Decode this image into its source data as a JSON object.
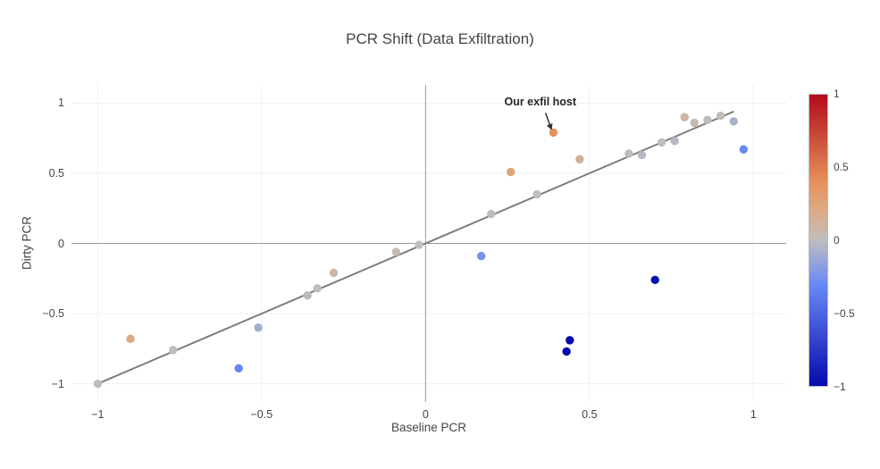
{
  "chart_data": {
    "type": "scatter",
    "title": "PCR Shift (Data Exfiltration)",
    "xlabel": "Baseline PCR",
    "ylabel": "Dirty PCR",
    "xlim": [
      -1.08,
      1.1
    ],
    "ylim": [
      -1.13,
      1.13
    ],
    "grid": true,
    "legend": "none",
    "x_tick_values": [
      -1,
      -0.5,
      0,
      0.5,
      1
    ],
    "x_tick_labels": [
      "−1",
      "−0.5",
      "0",
      "0.5",
      "1"
    ],
    "y_tick_values": [
      -1,
      -0.5,
      0,
      0.5,
      1
    ],
    "y_tick_labels": [
      "−1",
      "−0.5",
      "0",
      "0.5",
      "1"
    ],
    "zero_line_color": "#999999",
    "grid_color": "#efefef",
    "identity_line": {
      "from": [
        -1,
        -1
      ],
      "to": [
        0.94,
        0.94
      ],
      "color": "#7d7d7d",
      "width": 2
    },
    "color_by": "shift = dirty − baseline",
    "points": [
      {
        "x": -1.0,
        "y": -1.0,
        "shift": 0.0
      },
      {
        "x": -0.9,
        "y": -0.68,
        "shift": 0.22
      },
      {
        "x": -0.77,
        "y": -0.76,
        "shift": 0.01
      },
      {
        "x": -0.57,
        "y": -0.89,
        "shift": -0.32
      },
      {
        "x": -0.51,
        "y": -0.6,
        "shift": -0.09
      },
      {
        "x": -0.36,
        "y": -0.37,
        "shift": -0.01
      },
      {
        "x": -0.33,
        "y": -0.32,
        "shift": 0.01
      },
      {
        "x": -0.28,
        "y": -0.21,
        "shift": 0.07
      },
      {
        "x": -0.09,
        "y": -0.06,
        "shift": 0.03
      },
      {
        "x": -0.02,
        "y": -0.01,
        "shift": 0.01
      },
      {
        "x": 0.17,
        "y": -0.09,
        "shift": -0.26
      },
      {
        "x": 0.2,
        "y": 0.21,
        "shift": 0.01
      },
      {
        "x": 0.26,
        "y": 0.51,
        "shift": 0.25
      },
      {
        "x": 0.34,
        "y": 0.35,
        "shift": 0.01
      },
      {
        "x": 0.39,
        "y": 0.79,
        "shift": 0.4
      },
      {
        "x": 0.43,
        "y": -0.77,
        "shift": -1.2
      },
      {
        "x": 0.44,
        "y": -0.69,
        "shift": -1.13
      },
      {
        "x": 0.47,
        "y": 0.6,
        "shift": 0.13
      },
      {
        "x": 0.62,
        "y": 0.64,
        "shift": 0.02
      },
      {
        "x": 0.66,
        "y": 0.63,
        "shift": -0.03
      },
      {
        "x": 0.7,
        "y": -0.26,
        "shift": -0.96
      },
      {
        "x": 0.72,
        "y": 0.72,
        "shift": 0.0
      },
      {
        "x": 0.76,
        "y": 0.73,
        "shift": -0.03
      },
      {
        "x": 0.79,
        "y": 0.9,
        "shift": 0.11
      },
      {
        "x": 0.82,
        "y": 0.86,
        "shift": 0.04
      },
      {
        "x": 0.86,
        "y": 0.88,
        "shift": 0.02
      },
      {
        "x": 0.9,
        "y": 0.91,
        "shift": 0.01
      },
      {
        "x": 0.94,
        "y": 0.87,
        "shift": -0.07
      },
      {
        "x": 0.97,
        "y": 0.67,
        "shift": -0.3
      }
    ],
    "annotation": {
      "text": "Our exfil host",
      "text_x": 0.35,
      "text_y": 1.01,
      "arrow_from": [
        0.366,
        0.93
      ],
      "arrow_to": [
        0.382,
        0.825
      ],
      "arrow_color": "#333333"
    },
    "colorbar": {
      "min": -1,
      "max": 1,
      "tick_values": [
        1,
        0.5,
        0,
        -0.5,
        -1
      ],
      "tick_labels": [
        "1",
        "0.5",
        "0",
        "−0.5",
        "−1"
      ],
      "colorscale": [
        [
          0.0,
          "#050aac"
        ],
        [
          0.35,
          "#6a89f7"
        ],
        [
          0.5,
          "#bebebe"
        ],
        [
          0.6,
          "#dcaa84"
        ],
        [
          0.7,
          "#e6915a"
        ],
        [
          1.0,
          "#b20a1c"
        ]
      ]
    }
  }
}
